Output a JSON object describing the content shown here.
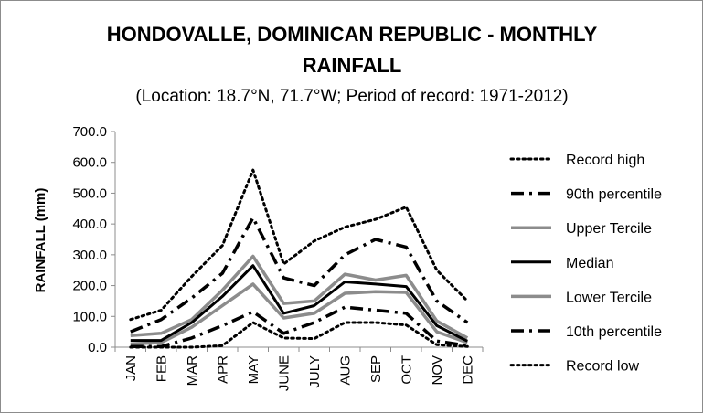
{
  "chart_data": {
    "type": "line",
    "title_line1": "HONDOVALLE, DOMINICAN REPUBLIC - MONTHLY",
    "title_line2": "RAINFALL",
    "subtitle": "(Location: 18.7°N, 71.7°W; Period of record: 1971-2012)",
    "xlabel": "",
    "ylabel": "RAINFALL (mm)",
    "ylim": [
      0,
      700
    ],
    "yticks": [
      "0.0",
      "100.0",
      "200.0",
      "300.0",
      "400.0",
      "500.0",
      "600.0",
      "700.0"
    ],
    "categories": [
      "JAN",
      "FEB",
      "MAR",
      "APR",
      "MAY",
      "JUNE",
      "JULY",
      "AUG",
      "SEP",
      "OCT",
      "NOV",
      "DEC"
    ],
    "grid": false,
    "legend_position": "right",
    "series": [
      {
        "name": "Record high",
        "style": "dotted",
        "color": "#000000",
        "values": [
          90,
          120,
          230,
          330,
          575,
          270,
          345,
          390,
          415,
          455,
          250,
          150
        ]
      },
      {
        "name": "90th percentile",
        "style": "dashdot",
        "color": "#000000",
        "values": [
          50,
          90,
          160,
          240,
          420,
          225,
          200,
          300,
          350,
          325,
          150,
          80
        ]
      },
      {
        "name": "Upper Tercile",
        "style": "solid",
        "color": "#8c8c8c",
        "values": [
          38,
          45,
          90,
          185,
          295,
          142,
          150,
          237,
          218,
          233,
          85,
          30
        ]
      },
      {
        "name": "Median",
        "style": "solid",
        "color": "#000000",
        "values": [
          22,
          22,
          80,
          165,
          265,
          110,
          135,
          212,
          205,
          197,
          70,
          20
        ]
      },
      {
        "name": "Lower Tercile",
        "style": "solid",
        "color": "#8c8c8c",
        "values": [
          10,
          15,
          65,
          135,
          205,
          95,
          110,
          175,
          180,
          178,
          50,
          15
        ]
      },
      {
        "name": "10th percentile",
        "style": "dashdot",
        "color": "#000000",
        "values": [
          2,
          2,
          30,
          70,
          115,
          45,
          80,
          130,
          120,
          110,
          20,
          5
        ]
      },
      {
        "name": "Record low",
        "style": "dotted",
        "color": "#000000",
        "values": [
          0,
          0,
          0,
          5,
          80,
          30,
          28,
          80,
          80,
          72,
          8,
          2
        ]
      }
    ]
  }
}
